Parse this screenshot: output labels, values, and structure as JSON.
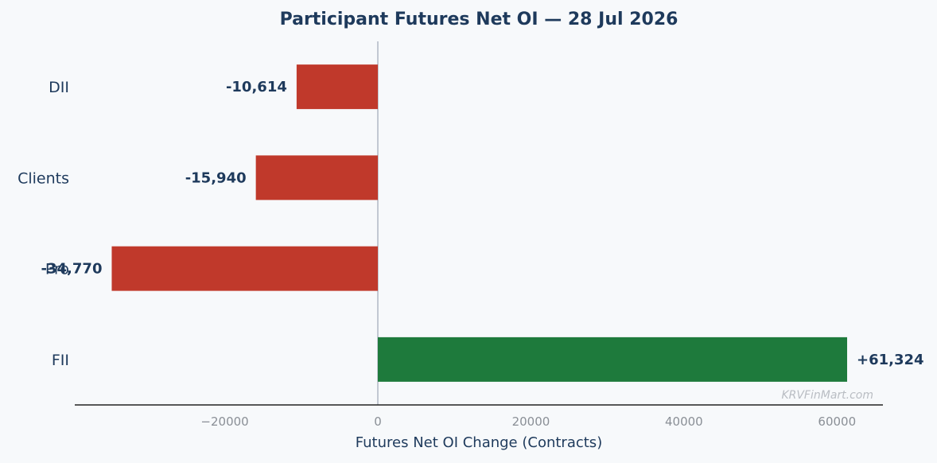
{
  "chart_data": {
    "type": "bar",
    "orientation": "horizontal",
    "title": "Participant Futures Net OI — 28 Jul 2026",
    "xlabel": "Futures Net OI Change (Contracts)",
    "ylabel": "",
    "categories": [
      "FII",
      "Pro",
      "Clients",
      "DII"
    ],
    "values": [
      61324,
      -34770,
      -15940,
      -10614
    ],
    "data_labels": [
      "+61,324",
      "-34,770",
      "-15,940",
      "-10,614"
    ],
    "xlim": [
      -39600,
      66000
    ],
    "xticks": [
      -20000,
      0,
      20000,
      40000,
      60000
    ],
    "xtick_labels": [
      "−20000",
      "0",
      "20000",
      "40000",
      "60000"
    ],
    "grid": false,
    "colors": {
      "positive": "#1e7a3c",
      "negative": "#c0392b",
      "text": "#1e3a5c",
      "zero_line": "#b0b8c4"
    },
    "watermark": "KRVFinMart.com"
  }
}
